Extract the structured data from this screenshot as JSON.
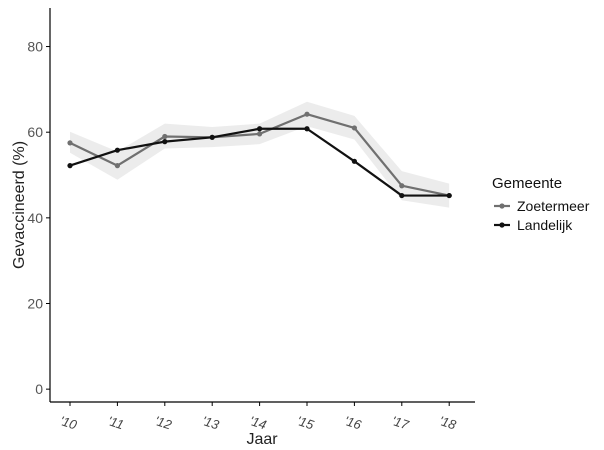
{
  "chart_data": {
    "type": "line",
    "x": [
      "'10",
      "'11",
      "'12",
      "'13",
      "'14",
      "'15",
      "'16",
      "'17",
      "'18"
    ],
    "xlabel": "Jaar",
    "ylabel": "Gevaccineerd (%)",
    "ylim": [
      -3,
      89
    ],
    "yticks": [
      0,
      20,
      40,
      60,
      80
    ],
    "grid": false,
    "legend": {
      "title": "Gemeente",
      "position": "right"
    },
    "series": [
      {
        "name": "Zoetermeer",
        "color": "#707070",
        "values": [
          57.5,
          52.2,
          59.0,
          58.8,
          59.6,
          64.2,
          61.0,
          47.5,
          45.2
        ],
        "ci_lower": [
          55.2,
          48.9,
          56.2,
          56.5,
          57.2,
          61.4,
          58.3,
          44.1,
          42.4
        ],
        "ci_upper": [
          60.1,
          55.5,
          62.0,
          61.2,
          62.0,
          67.1,
          63.8,
          50.9,
          48.0
        ]
      },
      {
        "name": "Landelijk",
        "color": "#111111",
        "values": [
          52.2,
          55.8,
          57.8,
          58.8,
          60.8,
          60.8,
          53.2,
          45.2,
          45.2
        ]
      }
    ]
  }
}
